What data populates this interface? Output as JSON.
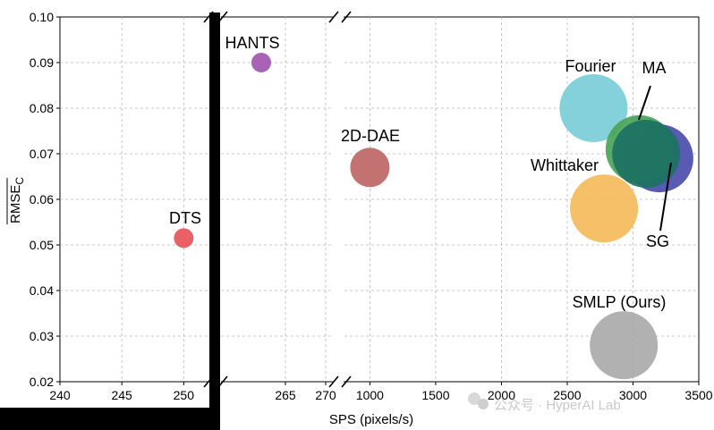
{
  "chart_data": {
    "type": "scatter",
    "title": "",
    "xlabel": "SPS (pixels/s)",
    "ylabel": "RMSE_C",
    "ylabel_main": "RMSE",
    "ylabel_sub": "C",
    "ylim": [
      0.02,
      0.1
    ],
    "yticks": [
      "0.02",
      "0.03",
      "0.04",
      "0.05",
      "0.06",
      "0.07",
      "0.08",
      "0.09",
      "0.10"
    ],
    "broken_x_axis": true,
    "segments": [
      {
        "xlim": [
          240,
          252
        ],
        "ticks": [
          "240",
          "245",
          "250"
        ]
      },
      {
        "xlim": [
          257,
          271
        ],
        "ticks": [
          "265",
          "270"
        ]
      },
      {
        "xlim": [
          800,
          3500
        ],
        "ticks": [
          "1000",
          "1500",
          "2000",
          "2500",
          "3000",
          "3500"
        ]
      }
    ],
    "points": [
      {
        "name": "DTS",
        "x": 250,
        "y": 0.0515,
        "size": "small",
        "color": "#e8525a"
      },
      {
        "name": "HANTS",
        "x": 262,
        "y": 0.09,
        "size": "small",
        "color": "#a256b0"
      },
      {
        "name": "2D-DAE",
        "x": 1000,
        "y": 0.067,
        "size": "medium",
        "color": "#bc6665"
      },
      {
        "name": "Fourier",
        "x": 2700,
        "y": 0.08,
        "size": "large",
        "color": "#79cdd8"
      },
      {
        "name": "SG",
        "x": 3200,
        "y": 0.069,
        "size": "large",
        "color": "#4b4dab"
      },
      {
        "name": "MA",
        "x": 3050,
        "y": 0.071,
        "size": "large",
        "color": "#4aa45a"
      },
      {
        "name": "",
        "x": 3100,
        "y": 0.07,
        "size": "large",
        "color": "#1b7163"
      },
      {
        "name": "Whittaker",
        "x": 2780,
        "y": 0.058,
        "size": "large",
        "color": "#f4bb5a"
      },
      {
        "name": "SMLP (Ours)",
        "x": 2930,
        "y": 0.028,
        "size": "large",
        "color": "#a9aaa9"
      }
    ]
  },
  "watermark": "公众号 · HyperAI Lab"
}
